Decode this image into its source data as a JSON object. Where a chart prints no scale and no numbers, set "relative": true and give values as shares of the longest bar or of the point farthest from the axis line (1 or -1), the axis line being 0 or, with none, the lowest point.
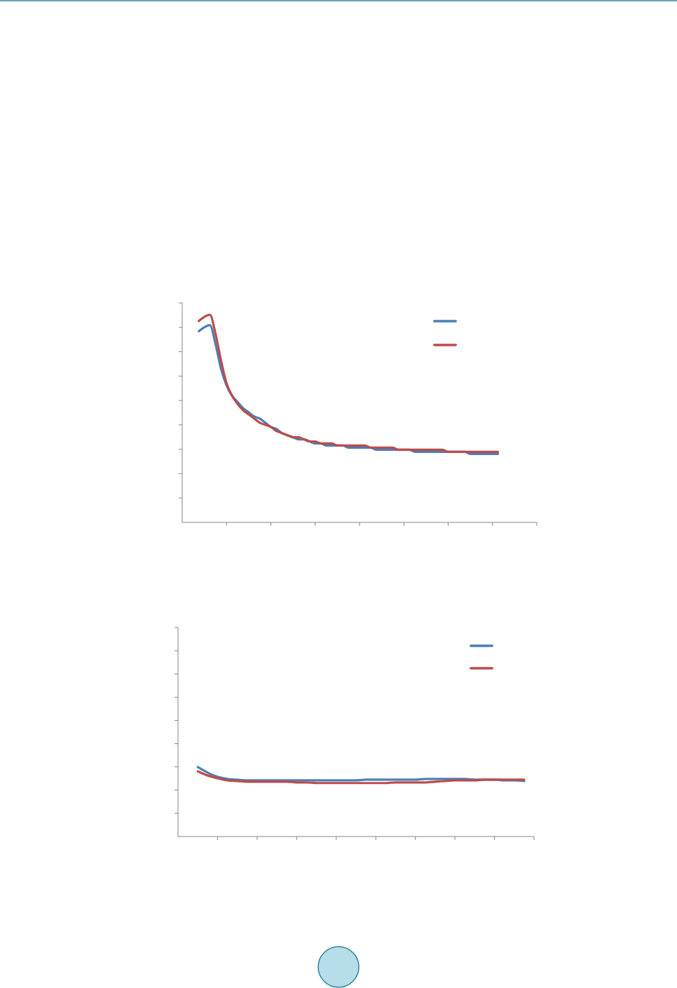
{
  "chart_data": [
    {
      "type": "line",
      "relative": true,
      "categories": [
        null,
        null,
        null,
        null,
        null,
        null,
        null,
        null,
        null,
        null,
        null,
        null,
        null,
        null,
        null,
        null,
        null,
        null,
        null,
        null,
        null,
        null,
        null,
        null,
        null,
        null,
        null,
        null,
        null,
        null,
        null,
        null,
        null,
        null,
        null,
        null,
        null,
        null,
        null,
        null,
        null,
        null,
        null,
        null,
        null,
        null,
        null,
        null,
        null,
        null,
        null,
        null,
        null,
        null,
        null,
        null,
        null,
        null,
        null,
        null,
        null,
        null,
        null,
        null,
        null
      ],
      "series": [
        {
          "color": "#4a7ebb",
          "values": [
            null,
            null,
            null,
            0.92,
            0.94,
            0.95,
            0.86,
            0.74,
            0.66,
            0.61,
            0.58,
            0.55,
            0.53,
            0.51,
            0.5,
            0.48,
            0.46,
            0.45,
            0.43,
            0.42,
            0.41,
            0.4,
            0.4,
            0.39,
            0.38,
            0.38,
            0.37,
            0.37,
            0.37,
            0.37,
            0.36,
            0.36,
            0.36,
            0.36,
            0.36,
            0.35,
            0.35,
            0.35,
            0.35,
            0.35,
            0.35,
            0.35,
            0.34,
            0.34,
            0.34,
            0.34,
            0.34,
            0.34,
            0.34,
            0.34,
            0.34,
            0.34,
            0.33,
            0.33,
            0.33,
            0.33,
            0.33,
            0.33,
            null,
            null,
            null,
            null,
            null,
            null,
            null
          ]
        },
        {
          "color": "#be4b48",
          "values": [
            null,
            null,
            null,
            0.97,
            0.99,
            1.0,
            0.91,
            0.78,
            0.67,
            0.61,
            0.57,
            0.54,
            0.52,
            0.5,
            0.48,
            0.47,
            0.46,
            0.44,
            0.43,
            0.42,
            0.41,
            0.41,
            0.4,
            0.39,
            0.39,
            0.38,
            0.38,
            0.38,
            0.37,
            0.37,
            0.37,
            0.37,
            0.37,
            0.37,
            0.36,
            0.36,
            0.36,
            0.36,
            0.36,
            0.35,
            0.35,
            0.35,
            0.35,
            0.35,
            0.35,
            0.35,
            0.35,
            0.35,
            0.34,
            0.34,
            0.34,
            0.34,
            0.34,
            0.34,
            0.34,
            0.34,
            0.34,
            0.34,
            null,
            null,
            null,
            null,
            null,
            null,
            null
          ]
        }
      ]
    },
    {
      "type": "line",
      "relative": true,
      "categories": [
        null,
        null,
        null,
        null,
        null,
        null,
        null,
        null,
        null,
        null,
        null,
        null,
        null,
        null,
        null,
        null,
        null,
        null,
        null,
        null,
        null,
        null,
        null,
        null,
        null,
        null,
        null,
        null,
        null,
        null,
        null,
        null,
        null,
        null,
        null,
        null,
        null
      ],
      "series": [
        {
          "color": "#4a7ebb",
          "values": [
            null,
            null,
            1.0,
            0.92,
            0.86,
            0.83,
            0.82,
            0.81,
            0.81,
            0.81,
            0.81,
            0.81,
            0.81,
            0.81,
            0.81,
            0.81,
            0.81,
            0.81,
            0.81,
            0.82,
            0.82,
            0.82,
            0.82,
            0.82,
            0.82,
            0.83,
            0.83,
            0.83,
            0.83,
            0.83,
            0.82,
            0.82,
            0.82,
            0.81,
            0.81,
            0.8,
            null
          ]
        },
        {
          "color": "#be4b48",
          "values": [
            null,
            null,
            0.94,
            0.88,
            0.84,
            0.81,
            0.8,
            0.79,
            0.79,
            0.79,
            0.79,
            0.79,
            0.78,
            0.78,
            0.77,
            0.77,
            0.77,
            0.77,
            0.77,
            0.77,
            0.77,
            0.77,
            0.78,
            0.78,
            0.78,
            0.78,
            0.79,
            0.8,
            0.81,
            0.81,
            0.81,
            0.82,
            0.82,
            0.82,
            0.82,
            0.82,
            null
          ]
        }
      ]
    }
  ]
}
